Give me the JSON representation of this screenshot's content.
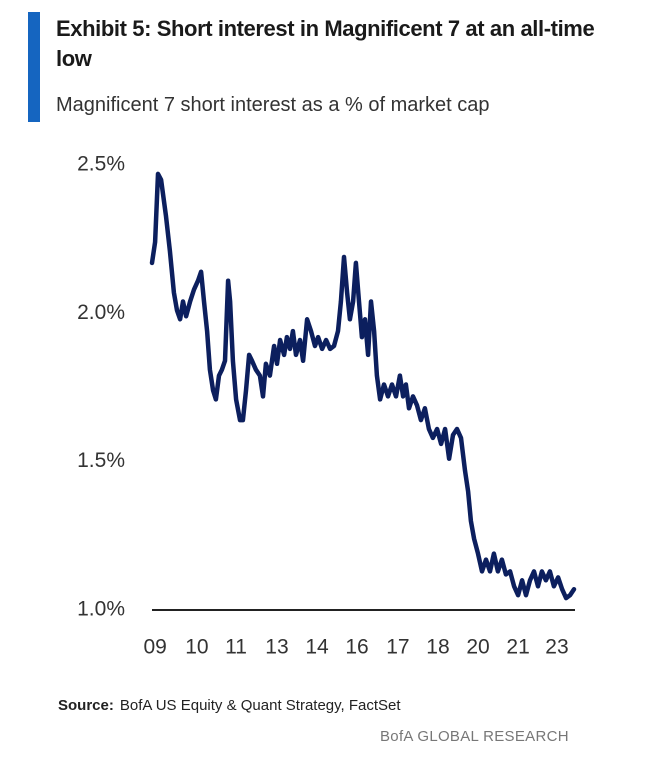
{
  "chart_data": {
    "type": "line",
    "title": "Exhibit 5: Short interest in Magnificent 7 at an all-time low",
    "subtitle": "Magnificent 7 short interest as a % of market cap",
    "source_label": "Source:",
    "source": "BofA US Equity & Quant Strategy, FactSet",
    "footer": "BofA GLOBAL RESEARCH",
    "color": "#0c1f5e",
    "x": [
      2009.0,
      2009.11,
      2009.21,
      2009.32,
      2009.39,
      2009.49,
      2009.63,
      2009.77,
      2009.88,
      2009.99,
      2010.09,
      2010.2,
      2010.34,
      2010.48,
      2010.62,
      2010.73,
      2010.83,
      2010.94,
      2011.04,
      2011.15,
      2011.25,
      2011.36,
      2011.46,
      2011.57,
      2011.68,
      2011.75,
      2011.85,
      2011.96,
      2012.1,
      2012.2,
      2012.31,
      2012.42,
      2012.52,
      2012.66,
      2012.8,
      2012.91,
      2013.01,
      2013.15,
      2013.3,
      2013.4,
      2013.51,
      2013.65,
      2013.75,
      2013.86,
      2013.96,
      2014.07,
      2014.21,
      2014.32,
      2014.46,
      2014.6,
      2014.74,
      2014.85,
      2014.99,
      2015.13,
      2015.27,
      2015.41,
      2015.55,
      2015.65,
      2015.76,
      2015.87,
      2015.97,
      2016.08,
      2016.18,
      2016.29,
      2016.39,
      2016.5,
      2016.61,
      2016.71,
      2016.82,
      2016.92,
      2017.03,
      2017.17,
      2017.31,
      2017.45,
      2017.59,
      2017.73,
      2017.84,
      2017.94,
      2018.05,
      2018.19,
      2018.33,
      2018.47,
      2018.61,
      2018.75,
      2018.89,
      2019.04,
      2019.18,
      2019.32,
      2019.46,
      2019.6,
      2019.74,
      2019.88,
      2020.02,
      2020.13,
      2020.23,
      2020.34,
      2020.48,
      2020.62,
      2020.76,
      2020.9,
      2021.04,
      2021.18,
      2021.32,
      2021.46,
      2021.61,
      2021.75,
      2021.89,
      2022.03,
      2022.17,
      2022.31,
      2022.45,
      2022.59,
      2022.73,
      2022.87,
      2023.01,
      2023.15,
      2023.3,
      2023.44,
      2023.58,
      2023.72,
      2023.86
    ],
    "values": [
      2.17,
      2.24,
      2.47,
      2.45,
      2.4,
      2.33,
      2.21,
      2.07,
      2.01,
      1.98,
      2.04,
      1.99,
      2.04,
      2.08,
      2.11,
      2.14,
      2.04,
      1.94,
      1.81,
      1.74,
      1.71,
      1.79,
      1.81,
      1.84,
      2.11,
      2.04,
      1.84,
      1.71,
      1.64,
      1.64,
      1.74,
      1.86,
      1.84,
      1.81,
      1.79,
      1.72,
      1.83,
      1.79,
      1.89,
      1.83,
      1.91,
      1.86,
      1.92,
      1.88,
      1.94,
      1.86,
      1.91,
      1.84,
      1.98,
      1.94,
      1.89,
      1.92,
      1.88,
      1.91,
      1.88,
      1.89,
      1.94,
      2.04,
      2.19,
      2.07,
      1.98,
      2.04,
      2.17,
      2.04,
      1.92,
      1.98,
      1.86,
      2.04,
      1.94,
      1.79,
      1.71,
      1.76,
      1.72,
      1.76,
      1.72,
      1.79,
      1.72,
      1.76,
      1.68,
      1.72,
      1.69,
      1.64,
      1.68,
      1.61,
      1.58,
      1.61,
      1.56,
      1.61,
      1.51,
      1.59,
      1.61,
      1.58,
      1.47,
      1.4,
      1.3,
      1.24,
      1.19,
      1.13,
      1.17,
      1.13,
      1.19,
      1.13,
      1.17,
      1.12,
      1.13,
      1.08,
      1.05,
      1.1,
      1.05,
      1.1,
      1.13,
      1.08,
      1.13,
      1.1,
      1.13,
      1.08,
      1.11,
      1.07,
      1.04,
      1.05,
      1.07
    ],
    "xlim": [
      2009,
      2024
    ],
    "xticks": [
      {
        "value": 2009.11,
        "label": "09"
      },
      {
        "value": 2010.58,
        "label": "10"
      },
      {
        "value": 2011.96,
        "label": "11"
      },
      {
        "value": 2013.4,
        "label": "13"
      },
      {
        "value": 2014.81,
        "label": "14"
      },
      {
        "value": 2016.22,
        "label": "16"
      },
      {
        "value": 2017.66,
        "label": "17"
      },
      {
        "value": 2019.07,
        "label": "18"
      },
      {
        "value": 2020.48,
        "label": "20"
      },
      {
        "value": 2021.89,
        "label": "21"
      },
      {
        "value": 2023.26,
        "label": "23"
      }
    ],
    "ylim": [
      1.0,
      2.5
    ],
    "yticks": [
      {
        "value": 2.5,
        "label": "2.5%"
      },
      {
        "value": 2.0,
        "label": "2.0%"
      },
      {
        "value": 1.5,
        "label": "1.5%"
      },
      {
        "value": 1.0,
        "label": "1.0%"
      }
    ],
    "grid": false
  }
}
